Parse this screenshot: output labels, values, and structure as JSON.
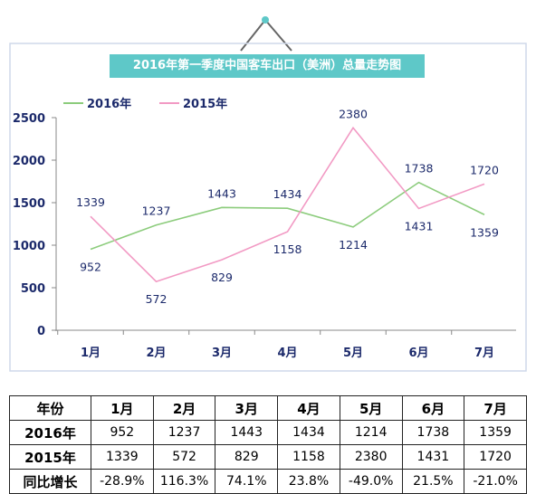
{
  "chart_data": {
    "type": "line",
    "title": "2016年第一季度中国客车出口（美洲）总量走势图",
    "categories": [
      "1月",
      "2月",
      "3月",
      "4月",
      "5月",
      "6月",
      "7月"
    ],
    "ylim": [
      0,
      2500
    ],
    "yticks": [
      0,
      500,
      1000,
      1500,
      2000,
      2500
    ],
    "legend_position": "top-left",
    "grid": false,
    "series": [
      {
        "name": "2016年",
        "color": "#8ccc7c",
        "values": [
          952,
          1237,
          1443,
          1434,
          1214,
          1738,
          1359
        ],
        "labels": [
          "952",
          "1237",
          "1443",
          "1434",
          "1214",
          "1738",
          "1359"
        ]
      },
      {
        "name": "2015年",
        "color": "#f29ac4",
        "values": [
          1339,
          572,
          829,
          1158,
          2380,
          1431,
          1720
        ],
        "labels": [
          "1339",
          "572",
          "829",
          "1158",
          "2380",
          "1431",
          "1720"
        ]
      }
    ]
  },
  "table": {
    "header": [
      "年份",
      "1月",
      "2月",
      "3月",
      "4月",
      "5月",
      "6月",
      "7月"
    ],
    "rows": [
      [
        "2016年",
        "952",
        "1237",
        "1443",
        "1434",
        "1214",
        "1738",
        "1359"
      ],
      [
        "2015年",
        "1339",
        "572",
        "829",
        "1158",
        "2380",
        "1431",
        "1720"
      ],
      [
        "同比增长",
        "-28.9%",
        "116.3%",
        "74.1%",
        "23.8%",
        "-49.0%",
        "21.5%",
        "-21.0%"
      ]
    ]
  }
}
